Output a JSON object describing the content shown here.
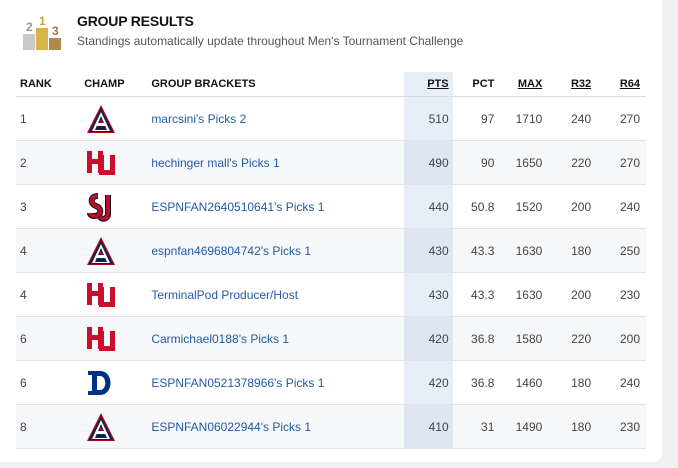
{
  "header": {
    "title": "GROUP RESULTS",
    "subtitle": "Standings automatically update throughout Men's Tournament Challenge"
  },
  "columns": {
    "rank": "RANK",
    "champ": "CHAMP",
    "group": "GROUP BRACKETS",
    "pts": "PTS",
    "pct": "PCT",
    "max": "MAX",
    "r32": "R32",
    "r64": "R64"
  },
  "rows": [
    {
      "rank": "1",
      "champ": "arizona-logo",
      "name": "marcsini's Picks 2",
      "pts": "510",
      "pct": "97",
      "max": "1710",
      "r32": "240",
      "r64": "270"
    },
    {
      "rank": "2",
      "champ": "houston-logo",
      "name": "hechinger mall's Picks 1",
      "pts": "490",
      "pct": "90",
      "max": "1650",
      "r32": "220",
      "r64": "270"
    },
    {
      "rank": "3",
      "champ": "st-johns-logo",
      "name": "ESPNFAN2640510641's Picks 1",
      "pts": "440",
      "pct": "50.8",
      "max": "1520",
      "r32": "200",
      "r64": "240"
    },
    {
      "rank": "4",
      "champ": "arizona-logo",
      "name": "espnfan4696804742's Picks 1",
      "pts": "430",
      "pct": "43.3",
      "max": "1630",
      "r32": "180",
      "r64": "250"
    },
    {
      "rank": "4",
      "champ": "houston-logo",
      "name": "TerminalPod Producer/Host",
      "pts": "430",
      "pct": "43.3",
      "max": "1630",
      "r32": "200",
      "r64": "230"
    },
    {
      "rank": "6",
      "champ": "houston-logo",
      "name": "Carmichael0188's Picks 1",
      "pts": "420",
      "pct": "36.8",
      "max": "1580",
      "r32": "220",
      "r64": "200"
    },
    {
      "rank": "6",
      "champ": "duke-logo",
      "name": "ESPNFAN0521378966's Picks 1",
      "pts": "420",
      "pct": "36.8",
      "max": "1460",
      "r32": "180",
      "r64": "240"
    },
    {
      "rank": "8",
      "champ": "arizona-logo",
      "name": "ESPNFAN06022944's Picks 1",
      "pts": "410",
      "pct": "31",
      "max": "1490",
      "r32": "180",
      "r64": "230"
    }
  ],
  "colors": {
    "link": "#225aa8",
    "arizona_navy": "#0c234b",
    "arizona_red": "#ab0520",
    "houston_red": "#c8102e",
    "stjohns_red": "#ba0c2f",
    "duke_blue": "#003087"
  }
}
